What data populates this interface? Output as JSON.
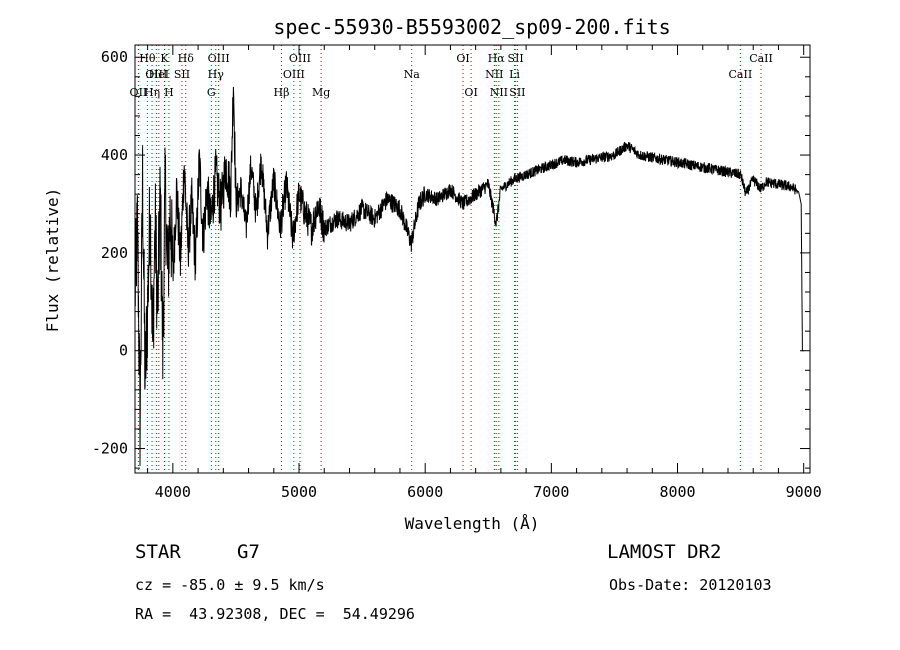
{
  "chart_data": {
    "type": "line",
    "title": "spec-55930-B5593002_sp09-200.fits",
    "xlabel": "Wavelength (Å)",
    "ylabel": "Flux (relative)",
    "xlim": [
      3700,
      9050
    ],
    "ylim": [
      -250,
      625
    ],
    "x_ticks": [
      4000,
      5000,
      6000,
      7000,
      8000,
      9000
    ],
    "y_ticks": [
      -200,
      0,
      200,
      400,
      600
    ],
    "grid": false,
    "series": [
      {
        "x": [
          3700,
          3720,
          3740,
          3760,
          3780,
          3800,
          3820,
          3840,
          3860,
          3880,
          3900,
          3920,
          3940,
          3960,
          3980,
          4000,
          4030,
          4060,
          4090,
          4120,
          4150,
          4180,
          4210,
          4240,
          4270,
          4300,
          4340,
          4380,
          4420,
          4460,
          4480,
          4500,
          4540,
          4580,
          4620,
          4660,
          4700,
          4750,
          4800,
          4850,
          4900,
          4950,
          5000,
          5050,
          5100,
          5150,
          5200,
          5300,
          5400,
          5500,
          5600,
          5700,
          5800,
          5890,
          5950,
          6000,
          6100,
          6200,
          6300,
          6400,
          6500,
          6563,
          6600,
          6700,
          6800,
          6900,
          7000,
          7100,
          7200,
          7300,
          7400,
          7500,
          7600,
          7700,
          7800,
          7900,
          8000,
          8100,
          8200,
          8300,
          8400,
          8500,
          8542,
          8600,
          8662,
          8700,
          8800,
          8900,
          8960,
          8980,
          8990,
          9000
        ],
        "y": [
          120,
          260,
          -150,
          350,
          -60,
          90,
          300,
          10,
          260,
          80,
          320,
          0,
          340,
          150,
          290,
          150,
          330,
          180,
          380,
          210,
          300,
          180,
          390,
          230,
          330,
          260,
          360,
          290,
          380,
          320,
          560,
          300,
          330,
          250,
          380,
          280,
          390,
          240,
          350,
          250,
          340,
          230,
          320,
          280,
          250,
          300,
          250,
          270,
          260,
          290,
          270,
          310,
          290,
          220,
          300,
          320,
          310,
          330,
          300,
          320,
          340,
          260,
          330,
          350,
          360,
          370,
          380,
          390,
          385,
          390,
          395,
          400,
          420,
          400,
          395,
          390,
          385,
          380,
          375,
          370,
          365,
          360,
          320,
          350,
          330,
          345,
          340,
          335,
          325,
          300,
          0,
          0
        ]
      }
    ],
    "line_markers": [
      {
        "label": "OII",
        "wavelength": 3727,
        "row": 2
      },
      {
        "label": "Hθ",
        "wavelength": 3798,
        "row": 0
      },
      {
        "label": "OIII",
        "wavelength": 3869,
        "row": 1
      },
      {
        "label": "Hη",
        "wavelength": 3835,
        "row": 2
      },
      {
        "label": "K",
        "wavelength": 3934,
        "row": 0
      },
      {
        "label": "HeI",
        "wavelength": 3889,
        "row": 1
      },
      {
        "label": "H",
        "wavelength": 3969,
        "row": 2
      },
      {
        "label": "SII",
        "wavelength": 4072,
        "row": 1
      },
      {
        "label": "Hδ",
        "wavelength": 4102,
        "row": 0
      },
      {
        "label": "OIII",
        "wavelength": 4363,
        "row": 0
      },
      {
        "label": "Hγ",
        "wavelength": 4340,
        "row": 1
      },
      {
        "label": "G",
        "wavelength": 4305,
        "row": 2
      },
      {
        "label": "OIII",
        "wavelength": 5007,
        "row": 0
      },
      {
        "label": "OIII",
        "wavelength": 4959,
        "row": 1
      },
      {
        "label": "Hβ",
        "wavelength": 4861,
        "row": 2
      },
      {
        "label": "Mg",
        "wavelength": 5175,
        "row": 2
      },
      {
        "label": "Na",
        "wavelength": 5893,
        "row": 1
      },
      {
        "label": "OI",
        "wavelength": 6300,
        "row": 0
      },
      {
        "label": "OI",
        "wavelength": 6364,
        "row": 2
      },
      {
        "label": "Hα",
        "wavelength": 6563,
        "row": 0
      },
      {
        "label": "NII",
        "wavelength": 6548,
        "row": 1
      },
      {
        "label": "NII",
        "wavelength": 6584,
        "row": 2
      },
      {
        "label": "SII",
        "wavelength": 6717,
        "row": 0
      },
      {
        "label": "Li",
        "wavelength": 6708,
        "row": 1
      },
      {
        "label": "SII",
        "wavelength": 6731,
        "row": 2
      },
      {
        "label": "CaII",
        "wavelength": 8662,
        "row": 0
      },
      {
        "label": "CaII",
        "wavelength": 8498,
        "row": 1
      }
    ],
    "marker_color": "#d00000"
  },
  "info": {
    "object_class": "STAR",
    "subclass": "G7",
    "survey": "LAMOST DR2",
    "redshift": "cz = -85.0 ± 9.5 km/s",
    "obs_date": "Obs-Date: 20120103",
    "coords": "RA =  43.92308, DEC =  54.49296"
  }
}
